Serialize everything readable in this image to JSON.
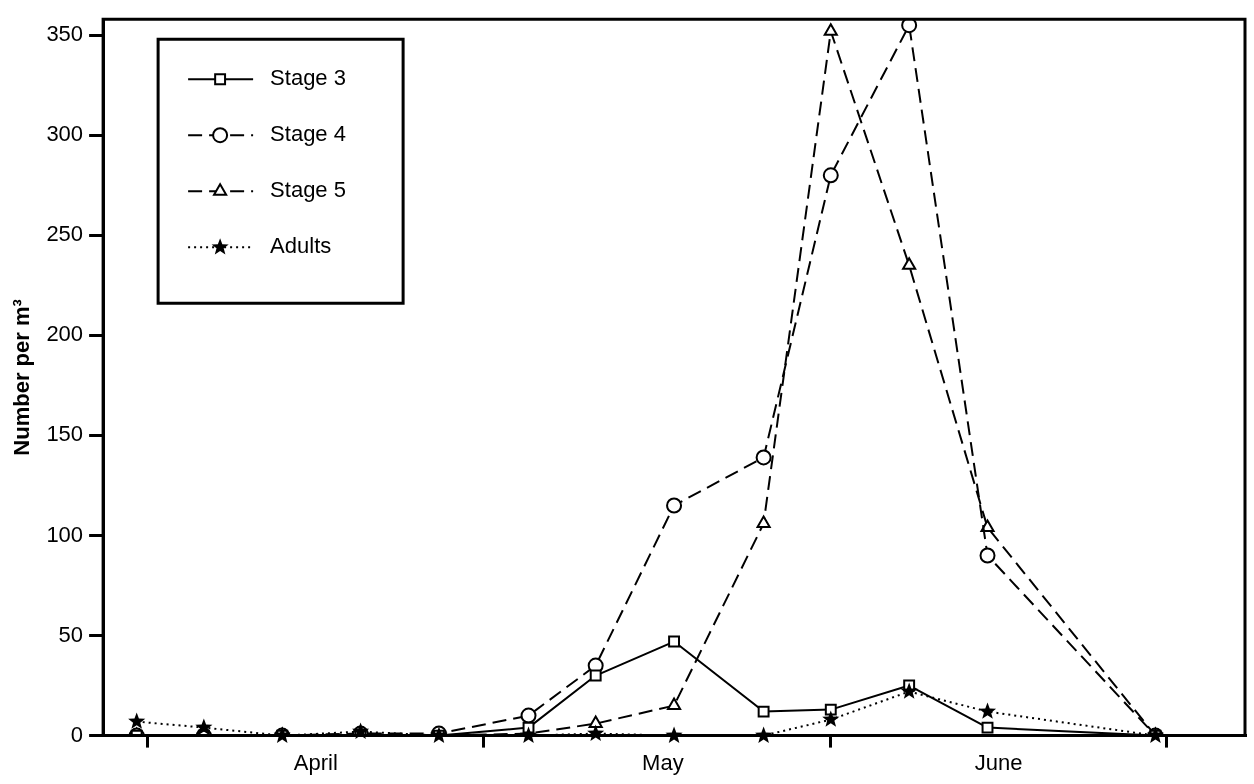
{
  "chart_data": {
    "type": "line",
    "ylabel": "Number per m³",
    "x": [
      "--03-31",
      "--04-06",
      "--04-13",
      "--04-20",
      "--04-27",
      "--05-05",
      "--05-11",
      "--05-18",
      "--05-26",
      "--06-01",
      "--06-08",
      "--06-15",
      "--06-30"
    ],
    "xlim": [
      "--03-28",
      "--07-08"
    ],
    "xticks": [
      {
        "value": "--04-01",
        "label": null
      },
      {
        "value": "--04-16",
        "label": "April"
      },
      {
        "value": "--05-01",
        "label": null
      },
      {
        "value": "--05-17",
        "label": "May"
      },
      {
        "value": "--06-01",
        "label": null
      },
      {
        "value": "--06-16",
        "label": "June"
      },
      {
        "value": "--07-01",
        "label": null
      }
    ],
    "ylim": [
      0,
      358
    ],
    "yticks": [
      0,
      50,
      100,
      150,
      200,
      250,
      300,
      350
    ],
    "grid": false,
    "legend": "top left",
    "series": [
      {
        "name": "Stage 3",
        "color": "#000000",
        "marker": "square",
        "line_style": "solid",
        "values": [
          0,
          0,
          0,
          0,
          0,
          4,
          30,
          47,
          12,
          13,
          25,
          4,
          0
        ]
      },
      {
        "name": "Stage 4",
        "color": "#000000",
        "marker": "circle",
        "line_style": "dashed",
        "values": [
          0,
          0,
          0,
          1,
          1,
          10,
          35,
          115,
          139,
          280,
          355,
          90,
          0
        ]
      },
      {
        "name": "Stage 5",
        "color": "#000000",
        "marker": "triangle",
        "line_style": "dashed",
        "values": [
          0,
          0,
          0,
          1,
          0,
          1,
          6,
          15,
          106,
          352,
          235,
          104,
          0
        ]
      },
      {
        "name": "Adults",
        "color": "#000000",
        "marker": "star",
        "line_style": "dotted",
        "values": [
          7,
          4,
          0,
          2,
          0,
          0,
          1,
          0,
          0,
          8,
          22,
          12,
          0
        ]
      }
    ]
  }
}
